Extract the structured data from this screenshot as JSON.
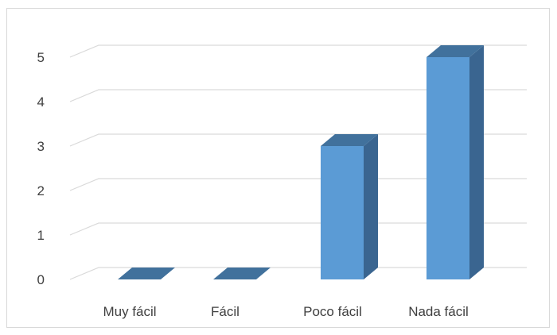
{
  "chart_data": {
    "type": "bar",
    "style": "3d-column",
    "categories": [
      "Muy fácil",
      "Fácil",
      "Poco fácil",
      "Nada fácil"
    ],
    "values": [
      0,
      0,
      3,
      5
    ],
    "yticks": [
      "0",
      "1",
      "2",
      "3",
      "4",
      "5"
    ],
    "ylim": [
      0,
      5
    ],
    "grid": true,
    "legend": "none",
    "title": "",
    "xlabel": "",
    "ylabel": ""
  },
  "colors": {
    "bar_front": "#5b9bd5",
    "bar_side": "#3a6590",
    "bar_top": "#41719c",
    "gridline": "#d9d9d9",
    "text": "#404040"
  }
}
